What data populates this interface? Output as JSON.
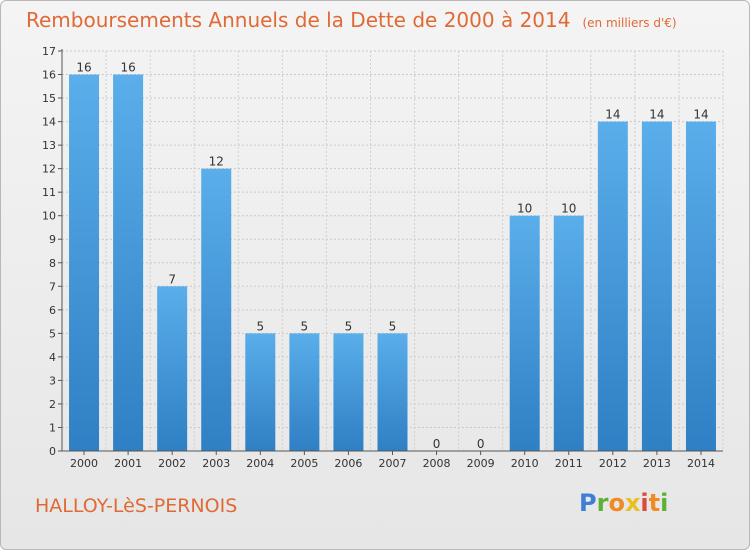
{
  "header": {
    "title": "Remboursements Annuels de la Dette de 2000 à 2014",
    "unit": "(en milliers d'€)"
  },
  "footer": {
    "commune": "HALLOY-LèS-PERNOIS",
    "logo_letters": [
      "P",
      "r",
      "o",
      "x",
      "i",
      "t",
      "i"
    ]
  },
  "chart_data": {
    "type": "bar",
    "title": "Remboursements Annuels de la Dette de 2000 à 2014",
    "unit": "(en milliers d'€)",
    "categories": [
      "2000",
      "2001",
      "2002",
      "2003",
      "2004",
      "2005",
      "2006",
      "2007",
      "2008",
      "2009",
      "2010",
      "2011",
      "2012",
      "2013",
      "2014"
    ],
    "values": [
      16,
      16,
      7,
      12,
      5,
      5,
      5,
      5,
      0,
      0,
      10,
      10,
      14,
      14,
      14
    ],
    "ylim": [
      0,
      17
    ],
    "yticks": [
      0,
      1,
      2,
      3,
      4,
      5,
      6,
      7,
      8,
      9,
      10,
      11,
      12,
      13,
      14,
      15,
      16,
      17
    ],
    "grid": true,
    "bar_color": "#4a9de0",
    "bar_color_dark": "#2f7fc4"
  }
}
